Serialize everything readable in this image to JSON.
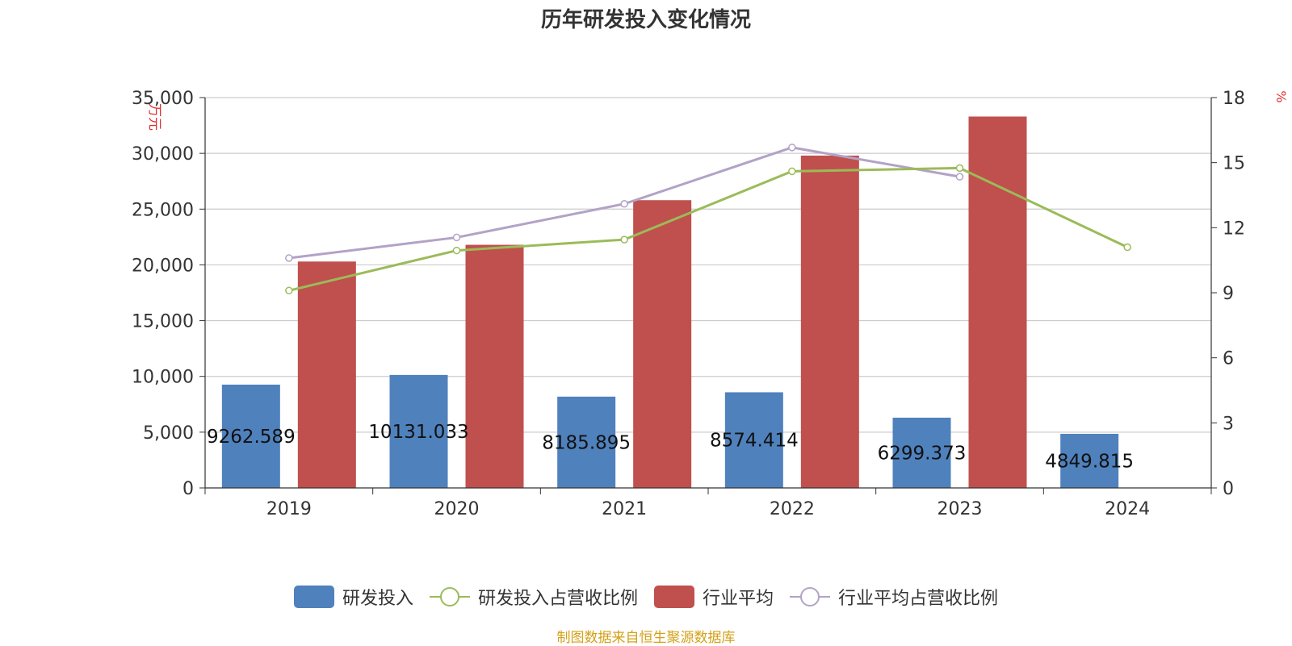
{
  "chart_data": {
    "type": "bar",
    "title": "历年研发投入变化情况",
    "categories": [
      "2019",
      "2020",
      "2021",
      "2022",
      "2023",
      "2024"
    ],
    "ylabel_left": "万元",
    "ylabel_right": "%",
    "ylim_left": [
      0,
      35000
    ],
    "ylim_right": [
      0,
      18
    ],
    "yticks_left": [
      "0",
      "5,000",
      "10,000",
      "15,000",
      "20,000",
      "25,000",
      "30,000",
      "35,000"
    ],
    "yticks_right": [
      "0",
      "3",
      "6",
      "9",
      "12",
      "15",
      "18"
    ],
    "grid": true,
    "legend_position": "bottom",
    "series": [
      {
        "name": "研发投入",
        "kind": "bar",
        "axis": "left",
        "color": "#4f81bd",
        "values": [
          9262.589,
          10131.033,
          8185.895,
          8574.414,
          6299.373,
          4849.815
        ],
        "labels": [
          "9262.589",
          "10131.033",
          "8185.895",
          "8574.414",
          "6299.373",
          "4849.815"
        ]
      },
      {
        "name": "研发投入占营收比例",
        "kind": "line",
        "axis": "right",
        "color": "#9bbb59",
        "values": [
          9.1,
          10.95,
          11.45,
          14.6,
          14.75,
          11.1
        ]
      },
      {
        "name": "行业平均",
        "kind": "bar",
        "axis": "left",
        "color": "#c0504d",
        "values": [
          20300,
          21800,
          25800,
          29800,
          33300,
          null
        ]
      },
      {
        "name": "行业平均占营收比例",
        "kind": "line",
        "axis": "right",
        "color": "#b3a2c7",
        "values": [
          10.6,
          11.55,
          13.1,
          15.7,
          14.35,
          null
        ]
      }
    ],
    "source": "制图数据来自恒生聚源数据库"
  }
}
